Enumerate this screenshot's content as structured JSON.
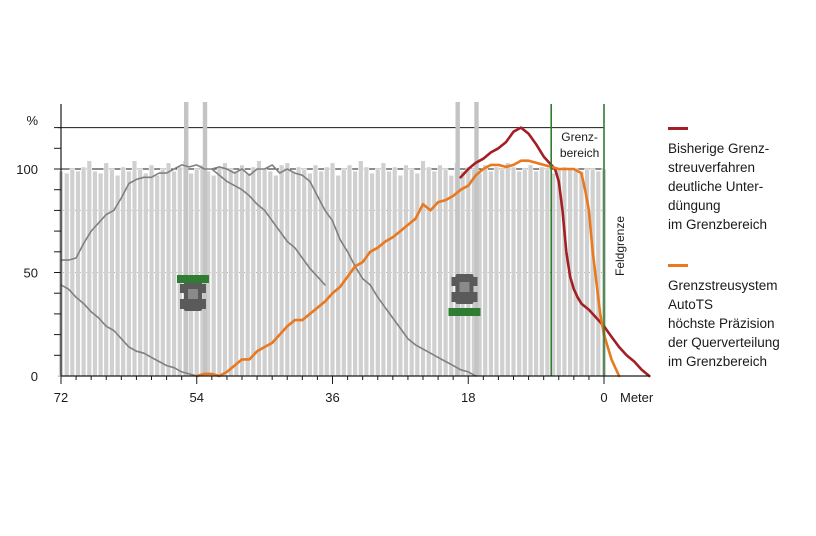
{
  "chart_data": {
    "type": "line",
    "xlabel": "Meter",
    "ylabel": "%",
    "x_ticks": [
      "72",
      "54",
      "36",
      "18",
      "0"
    ],
    "y_ticks": [
      "0",
      "50",
      "100"
    ],
    "xlim": [
      72,
      -6
    ],
    "ylim": [
      0,
      120
    ],
    "grid": "horizontal",
    "boundary_zone": {
      "label": "Grenz-\nbereich",
      "from": 7,
      "to": 0
    },
    "field_edge": {
      "label": "Feldgrenze",
      "x": 0
    },
    "tractor_tracks": [
      54.5,
      18.5
    ],
    "legend_placement": "right",
    "colors": {
      "conventional": "#a31f24",
      "autots": "#e9781f",
      "single_pass": "#808080",
      "bars": "#d0d0d0",
      "boundary": "#2f7d32",
      "tractor_body": "#5a5a5a",
      "tractor_boom": "#2f7d32"
    },
    "icons": [
      "tractor-icon",
      "tractor-icon"
    ],
    "bars_series": {
      "name": "",
      "x_from": 72,
      "x_step": 0.75,
      "values": [
        99,
        98,
        100,
        99,
        101,
        104,
        99,
        98,
        103,
        100,
        97,
        101,
        99,
        104,
        100,
        98,
        102,
        97,
        100,
        103,
        99,
        101,
        104,
        98,
        100,
        102,
        99,
        97,
        101,
        103,
        100,
        99,
        102,
        98,
        101,
        104,
        100,
        99,
        97,
        102,
        103,
        99,
        101,
        100,
        98,
        102,
        99,
        101,
        103,
        97,
        100,
        102,
        99,
        104,
        101,
        98,
        100,
        103,
        99,
        101,
        97,
        102,
        100,
        98,
        104,
        101,
        99,
        102,
        100,
        97,
        103,
        99,
        101,
        100,
        98,
        102,
        99,
        101,
        100,
        103,
        101,
        99,
        100,
        102,
        99,
        101,
        100,
        98,
        100,
        101,
        100,
        100,
        99,
        100,
        100,
        99,
        100
      ]
    },
    "series": [
      {
        "name": "",
        "x": [
          72,
          71,
          70,
          69,
          68,
          67,
          66,
          65,
          64,
          63,
          62,
          61,
          60,
          59,
          58,
          57,
          56,
          55,
          54,
          53,
          52,
          51,
          50,
          49,
          48,
          47,
          46,
          45,
          44,
          43,
          42,
          41,
          40,
          39,
          38,
          37
        ],
        "values": [
          56,
          56,
          57,
          64,
          70,
          74,
          78,
          80,
          86,
          93,
          95,
          96,
          96,
          98,
          98,
          100,
          102,
          101,
          102,
          100,
          100,
          97,
          94,
          92,
          90,
          87,
          83,
          80,
          75,
          70,
          65,
          62,
          57,
          52,
          48,
          44
        ]
      },
      {
        "name": "",
        "x": [
          72,
          71,
          70,
          69,
          68,
          67,
          66,
          65,
          64,
          63,
          62,
          61,
          60,
          59,
          58,
          57,
          56,
          55,
          54
        ],
        "values": [
          44,
          42,
          38,
          35,
          31,
          28,
          24,
          22,
          18,
          14,
          12,
          11,
          9,
          7,
          5,
          4,
          2,
          1,
          0
        ]
      },
      {
        "name": "",
        "x": [
          52,
          51,
          50,
          49,
          48,
          47,
          46,
          45,
          44,
          43,
          42,
          41,
          40,
          39,
          38,
          37,
          36,
          35,
          34,
          33,
          32,
          31,
          30,
          29,
          28,
          27,
          26,
          25,
          24,
          23,
          22,
          21,
          20,
          19,
          18,
          17
        ],
        "values": [
          100,
          101,
          100,
          98,
          100,
          97,
          100,
          100,
          102,
          98,
          100,
          98,
          97,
          94,
          87,
          80,
          75,
          66,
          60,
          53,
          47,
          44,
          38,
          33,
          28,
          23,
          18,
          15,
          13,
          11,
          9,
          7,
          5,
          3,
          2,
          0
        ]
      },
      {
        "name": "Bisherige Grenz-\nstreuverfahren\ndeutliche Unter-\ndüngung\nim Grenzbereich",
        "x": [
          19,
          18,
          17,
          16,
          15,
          14,
          13,
          12,
          11,
          10,
          9,
          8,
          7,
          6.5,
          6,
          5.5,
          5,
          4.5,
          4,
          3.5,
          3,
          2,
          1,
          0,
          -1,
          -2,
          -3,
          -4,
          -5,
          -6
        ],
        "values": [
          96,
          100,
          103,
          105,
          108,
          110,
          113,
          118,
          120,
          117,
          112,
          106,
          102,
          100,
          94,
          80,
          60,
          48,
          42,
          38,
          35,
          32,
          28,
          24,
          19,
          14,
          10,
          7,
          3,
          0
        ]
      },
      {
        "name": "Grenzstreusystem\nAutoTS\nhöchste Präzision\nder Querverteilung\nim Grenzbereich",
        "x": [
          54,
          53,
          52,
          51,
          50,
          49,
          48,
          47,
          46,
          45,
          44,
          43,
          42,
          41,
          40,
          39,
          38,
          37,
          36,
          35,
          34,
          33,
          32,
          31,
          30,
          29,
          28,
          27,
          26,
          25,
          24,
          23,
          22,
          21,
          20,
          19,
          18,
          17,
          16,
          15,
          14,
          13,
          12,
          11,
          10,
          9,
          8,
          7,
          6,
          5,
          4,
          3,
          2.5,
          2,
          1.5,
          1,
          0.5,
          0,
          -1,
          -2
        ],
        "values": [
          0,
          1,
          1,
          0,
          2,
          5,
          8,
          8,
          12,
          14,
          16,
          20,
          24,
          27,
          27,
          30,
          33,
          36,
          40,
          43,
          48,
          53,
          55,
          60,
          62,
          65,
          67,
          70,
          73,
          76,
          83,
          80,
          84,
          85,
          87,
          90,
          92,
          97,
          100,
          102,
          102,
          101,
          102,
          104,
          104,
          103,
          102,
          101,
          100,
          100,
          100,
          98,
          90,
          80,
          60,
          45,
          30,
          20,
          8,
          0
        ]
      }
    ]
  }
}
